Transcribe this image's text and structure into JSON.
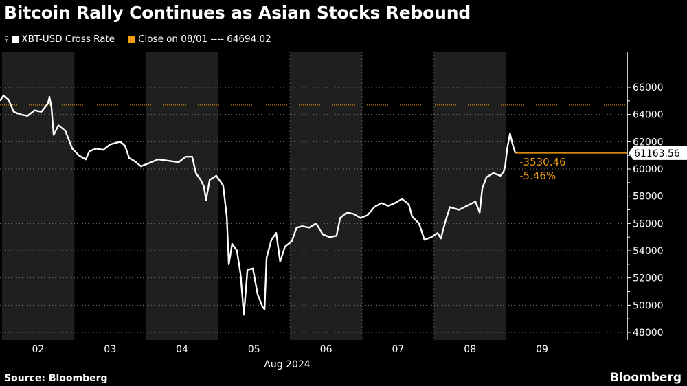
{
  "title": "Bitcoin Rally Continues as Asian Stocks Rebound",
  "legend": [
    {
      "label": "XBT-USD Cross Rate",
      "color": "#ffffff"
    },
    {
      "label": "Close on 08/01 ---- 64694.02",
      "color": "#f39c12"
    }
  ],
  "footer": {
    "source": "Source: Bloomberg",
    "logo": "Bloomberg"
  },
  "annotations": {
    "last_value": "61163.56",
    "change": "-3530.46",
    "change_pct": "-5.46%"
  },
  "chart_data": {
    "type": "line",
    "title": "Bitcoin Rally Continues as Asian Stocks Rebound",
    "xlabel": "Aug 2024",
    "ylabel": "",
    "x_unit": "hours since Aug 02 00:00",
    "xlim": [
      -0.7,
      195
    ],
    "ylim": [
      48000,
      66000
    ],
    "yticks": [
      48000,
      50000,
      52000,
      54000,
      56000,
      58000,
      60000,
      62000,
      64000,
      66000
    ],
    "xticks": [
      {
        "label": "02",
        "at": 12
      },
      {
        "label": "03",
        "at": 36
      },
      {
        "label": "04",
        "at": 60
      },
      {
        "label": "05",
        "at": 84
      },
      {
        "label": "06",
        "at": 108
      },
      {
        "label": "07",
        "at": 132
      },
      {
        "label": "08",
        "at": 156
      },
      {
        "label": "09",
        "at": 180
      }
    ],
    "reference_line": {
      "label": "Close on 08/01",
      "value": 64694.02
    },
    "current_line": {
      "value": 61163.56
    },
    "series": [
      {
        "name": "XBT-USD Cross Rate",
        "x": [
          -0.7,
          0.5,
          2.1,
          3.9,
          6.2,
          8.5,
          10.8,
          13.1,
          15.3,
          15.8,
          16.5,
          17.2,
          18.8,
          21.1,
          23.4,
          25.6,
          27.9,
          29.1,
          31.4,
          33.7,
          36.0,
          39.4,
          41.0,
          42.4,
          44.0,
          46.3,
          48.6,
          52.0,
          55.4,
          58.9,
          61.2,
          63.4,
          64.6,
          66.2,
          67.3,
          68.0,
          69.2,
          71.4,
          73.7,
          74.9,
          75.6,
          76.7,
          78.3,
          79.5,
          80.6,
          81.8,
          83.6,
          85.2,
          86.8,
          87.5,
          88.2,
          89.8,
          91.4,
          92.7,
          94.3,
          96.6,
          98.2,
          100.1,
          102.4,
          104.7,
          106.9,
          109.2,
          111.5,
          112.7,
          114.9,
          117.2,
          119.5,
          121.8,
          124.1,
          126.4,
          128.7,
          131.0,
          133.3,
          135.6,
          136.7,
          139.0,
          140.8,
          143.1,
          145.2,
          146.3,
          147.7,
          149.3,
          152.3,
          155.0,
          157.8,
          159.2,
          160.1,
          161.5,
          163.8,
          166.1,
          167.2,
          167.7,
          168.4,
          169.3,
          170.2,
          171.1
        ],
        "y": [
          65000,
          65400,
          65100,
          64200,
          64000,
          63900,
          64300,
          64200,
          64800,
          65300,
          64500,
          62500,
          63200,
          62800,
          61500,
          61000,
          60700,
          61300,
          61500,
          61400,
          61800,
          62000,
          61700,
          60800,
          60600,
          60200,
          60400,
          60700,
          60600,
          60500,
          60900,
          60900,
          59700,
          59200,
          58700,
          57700,
          59200,
          59500,
          58800,
          56500,
          53000,
          54500,
          54000,
          52300,
          49300,
          52600,
          52700,
          50800,
          49900,
          49700,
          53500,
          54800,
          55300,
          53200,
          54300,
          54700,
          55700,
          55800,
          55700,
          56000,
          55200,
          55000,
          55100,
          56400,
          56800,
          56700,
          56400,
          56600,
          57200,
          57500,
          57300,
          57500,
          57800,
          57400,
          56500,
          56000,
          54800,
          55000,
          55300,
          54900,
          56100,
          57200,
          57000,
          57300,
          57600,
          56800,
          58600,
          59400,
          59700,
          59500,
          59800,
          60200,
          61500,
          62600,
          61800,
          61164
        ]
      }
    ],
    "shaded_days": [
      "02",
      "04",
      "06",
      "08"
    ],
    "grid": true,
    "legend_position": "top-left"
  }
}
